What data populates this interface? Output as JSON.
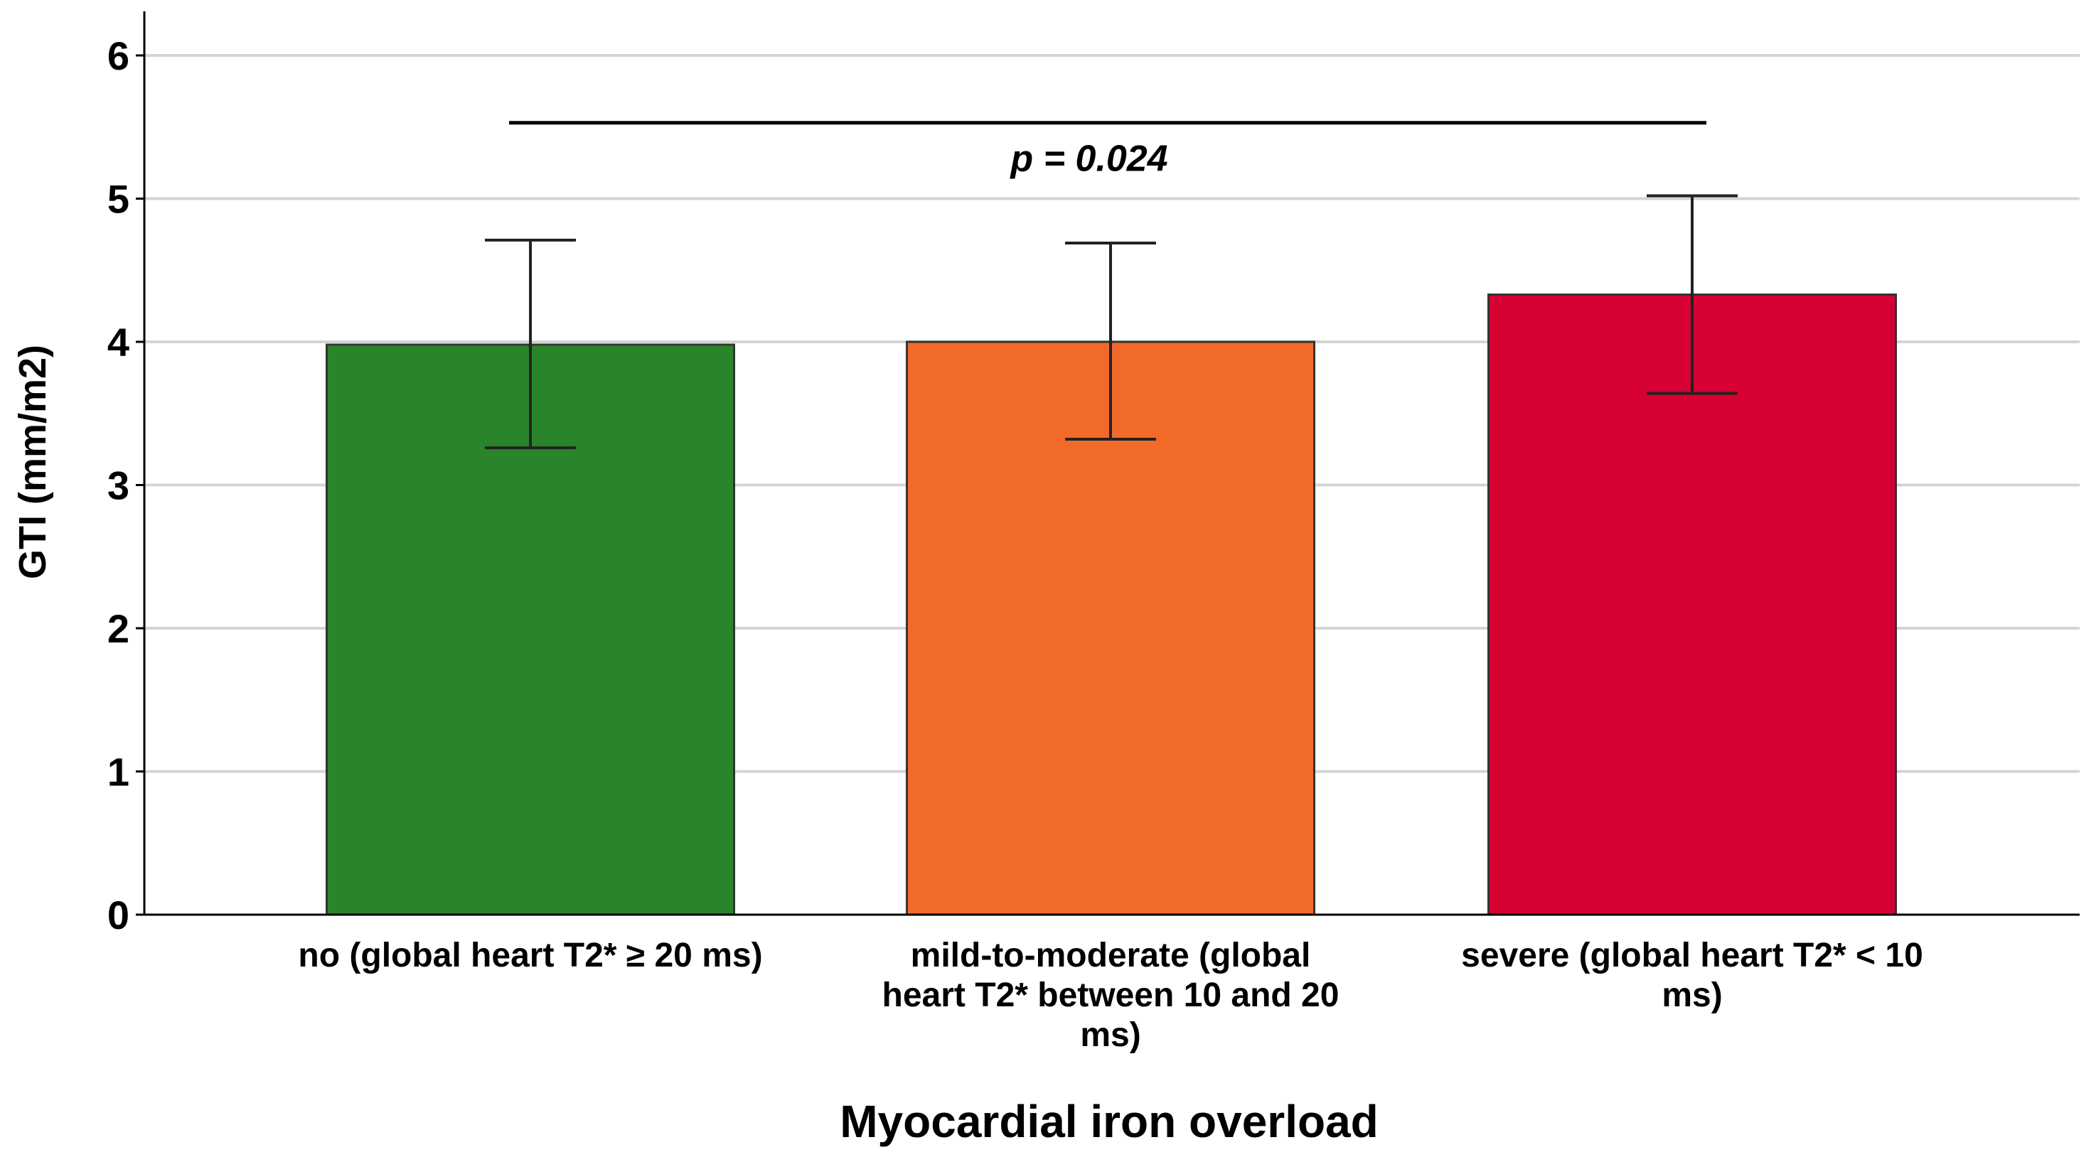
{
  "chart_data": {
    "type": "bar",
    "title": "",
    "xlabel": "Myocardial iron overload",
    "ylabel": "GTI (mm/m2)",
    "ylim": [
      0,
      6.3
    ],
    "yticks": [
      "0",
      "1",
      "2",
      "3",
      "4",
      "5",
      "6"
    ],
    "grid": true,
    "categories": [
      [
        "no (global heart T2* ≥ 20 ms)"
      ],
      [
        "mild-to-moderate (global",
        "heart T2* between 10 and 20",
        "ms)"
      ],
      [
        "severe (global heart T2* < 10",
        "ms)"
      ]
    ],
    "values": [
      3.98,
      4.0,
      4.33
    ],
    "error_low": [
      3.26,
      3.32,
      3.64
    ],
    "error_high": [
      4.71,
      4.69,
      5.02
    ],
    "colors": [
      "#2A8429",
      "#F26A2A",
      "#D70032"
    ],
    "annotation": {
      "text": "p = 0.024",
      "bracket_y": 5.53,
      "from_category": 0,
      "to_category": 2
    }
  }
}
